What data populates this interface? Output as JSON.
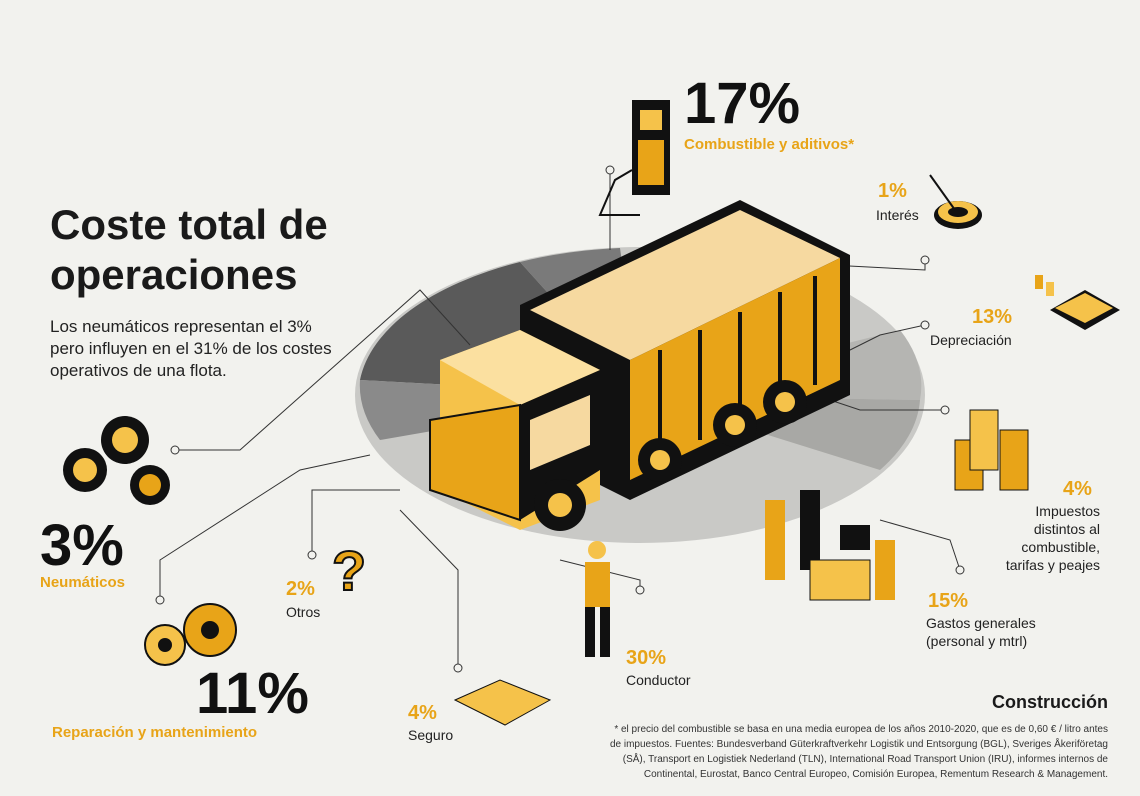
{
  "title_line1": "Coste total de",
  "title_line2": "operaciones",
  "intro": "Los neumáticos representan el 3% pero influyen en el 31% de los costes operativos de una flota.",
  "items": {
    "combustible": {
      "pct": "17%",
      "label": "Combustible y aditivos*"
    },
    "interes": {
      "pct": "1%",
      "label": "Interés"
    },
    "depreciacion": {
      "pct": "13%",
      "label": "Depreciación"
    },
    "impuestos": {
      "pct": "4%",
      "label_l1": "Impuestos",
      "label_l2": "distintos al",
      "label_l3": "combustible,",
      "label_l4": "tarifas y peajes"
    },
    "gastos": {
      "pct": "15%",
      "label_l1": "Gastos generales",
      "label_l2": "(personal y mtrl)"
    },
    "conductor": {
      "pct": "30%",
      "label": "Conductor"
    },
    "seguro": {
      "pct": "4%",
      "label": "Seguro"
    },
    "otros": {
      "pct": "2%",
      "label": "Otros"
    },
    "neumaticos": {
      "pct": "3%",
      "label": "Neumáticos"
    },
    "reparacion": {
      "pct": "11%",
      "label": "Reparación y mantenimiento"
    }
  },
  "section": "Construcción",
  "footnote_l1": "* el precio del combustible se basa en una media europea de los años 2010-2020, que es de 0,60 € / litro antes",
  "footnote_l2": "de impuestos. Fuentes: Bundesverband Güterkraftverkehr Logistik und Entsorgung (BGL), Sveriges Åkeriföretag",
  "footnote_l3": "(SÅ), Transport en Logistiek Nederland (TLN), International Road Transport Union (IRU), informes internos de",
  "footnote_l4": "Continental, Eurostat, Banco Central Europeo, Comisión Europea, Rementum Research & Management.",
  "colors": {
    "accent": "#e8a418",
    "dark": "#1a1a1a",
    "background": "#f2f2ee"
  }
}
